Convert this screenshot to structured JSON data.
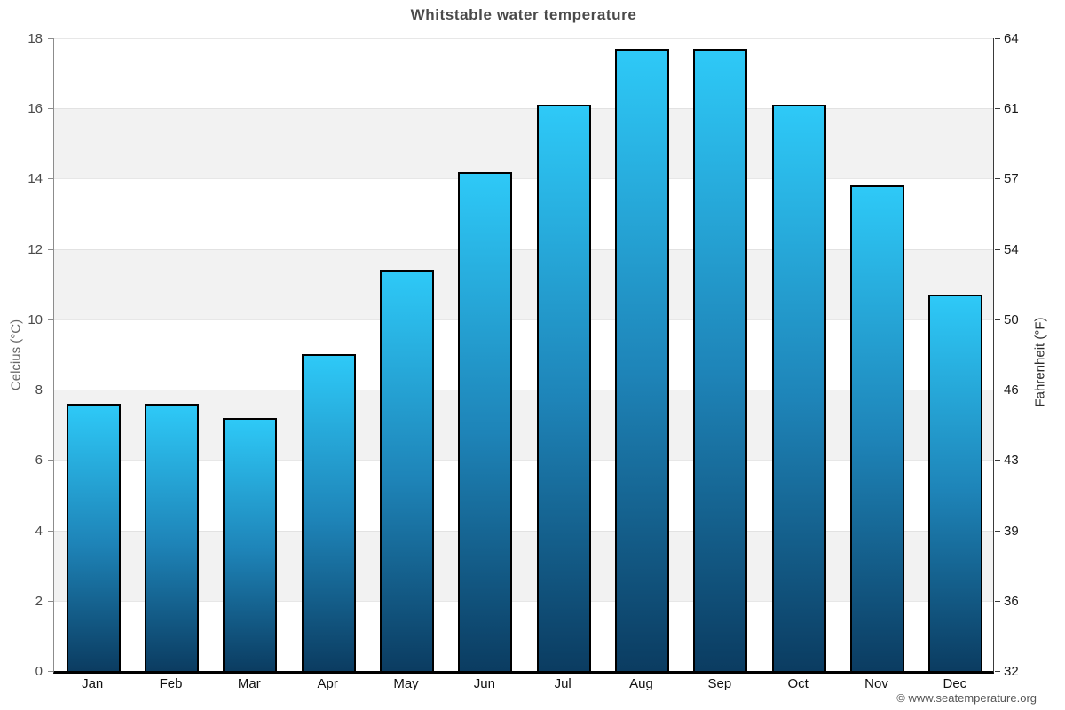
{
  "title": "Whitstable water temperature",
  "footer": "© www.seatemperature.org",
  "axes": {
    "left_title": "Celcius (°C)",
    "right_title": "Fahrenheit (°F)"
  },
  "chart_data": {
    "type": "bar",
    "title": "Whitstable water temperature",
    "categories": [
      "Jan",
      "Feb",
      "Mar",
      "Apr",
      "May",
      "Jun",
      "Jul",
      "Aug",
      "Sep",
      "Oct",
      "Nov",
      "Dec"
    ],
    "values": [
      7.6,
      7.6,
      7.2,
      9.0,
      11.4,
      14.2,
      16.1,
      17.7,
      17.7,
      16.1,
      13.8,
      10.7
    ],
    "series_name": "Water temperature (°C)",
    "xlabel": "",
    "ylabel": "Celcius (°C)",
    "ylabel_secondary": "Fahrenheit (°F)",
    "ylim": [
      0,
      18
    ],
    "yticks_celsius": [
      0,
      2,
      4,
      6,
      8,
      10,
      12,
      14,
      16,
      18
    ],
    "yticks_fahrenheit_labels": [
      "32",
      "36",
      "39",
      "43",
      "46",
      "50",
      "54",
      "57",
      "61",
      "64"
    ],
    "legend_position": "none",
    "grid": "alternating horizontal gray bands every 2°C",
    "colors": {
      "bar_gradient_top": "#2ec9f7",
      "bar_gradient_bottom": "#0b3c61",
      "bar_border": "#000000",
      "band_gray": "#f2f2f2",
      "title_text": "#4a4a4a",
      "axis_bottom_line": "#000000"
    }
  }
}
